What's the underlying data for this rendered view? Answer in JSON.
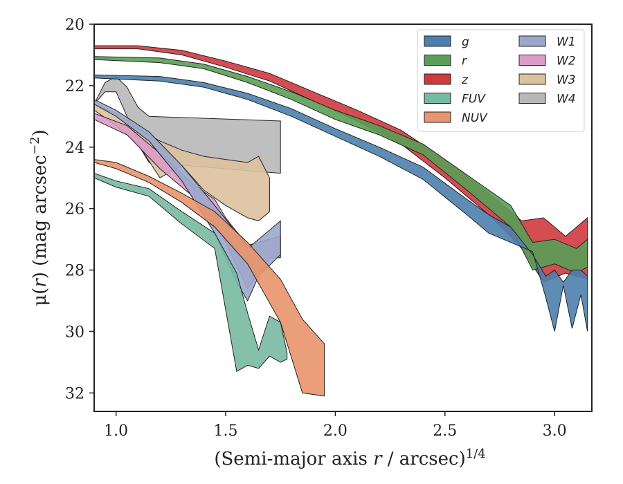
{
  "chart_data": {
    "type": "area",
    "title": "",
    "xlabel": {
      "prefix": "(Semi-major axis ",
      "var": "r",
      "suffix": " / arcsec)",
      "sup": "1/4"
    },
    "ylabel": {
      "prefix": "μ(",
      "var": "r",
      "suffix": ") (mag arcsec",
      "sup": "−2",
      "end": ")"
    },
    "xlim": [
      0.9,
      3.17
    ],
    "ylim": [
      32.6,
      20.0
    ],
    "y_inverted": true,
    "xticks": [
      1.0,
      1.5,
      2.0,
      2.5,
      3.0
    ],
    "xtick_labels": [
      "1.0",
      "1.5",
      "2.0",
      "2.5",
      "3.0"
    ],
    "yticks": [
      20,
      22,
      24,
      26,
      28,
      30,
      32
    ],
    "ytick_labels": [
      "20",
      "22",
      "24",
      "26",
      "28",
      "30",
      "32"
    ],
    "grid": false,
    "legend_position": "top-right",
    "legend_columns": 2,
    "series": [
      {
        "name": "g",
        "color": "#4c7fad",
        "x": [
          0.9,
          1.2,
          1.4,
          1.6,
          1.8,
          2.0,
          2.2,
          2.4,
          2.6,
          2.7,
          2.8,
          2.9,
          2.96,
          3.0,
          3.04,
          3.08,
          3.12,
          3.15
        ],
        "y_upper": [
          21.65,
          21.7,
          21.9,
          22.25,
          22.75,
          23.4,
          24.0,
          24.65,
          25.7,
          26.2,
          26.6,
          27.5,
          28.2,
          28.0,
          28.4,
          28.0,
          28.0,
          28.2
        ],
        "y_lower": [
          21.75,
          21.85,
          22.05,
          22.45,
          23.0,
          23.65,
          24.3,
          25.05,
          26.2,
          26.8,
          27.1,
          27.4,
          28.9,
          30.0,
          28.5,
          29.9,
          28.8,
          30.0
        ]
      },
      {
        "name": "r",
        "color": "#5a9e55",
        "x": [
          0.9,
          1.2,
          1.4,
          1.6,
          1.8,
          2.0,
          2.2,
          2.4,
          2.6,
          2.8,
          2.9,
          3.0,
          3.1,
          3.15
        ],
        "y_upper": [
          21.05,
          21.1,
          21.3,
          21.7,
          22.2,
          22.8,
          23.3,
          23.9,
          24.9,
          25.9,
          27.1,
          27.0,
          27.3,
          27.0
        ],
        "y_lower": [
          21.15,
          21.25,
          21.45,
          21.9,
          22.45,
          23.1,
          23.6,
          24.25,
          25.4,
          26.6,
          28.0,
          27.8,
          28.1,
          27.9
        ]
      },
      {
        "name": "z",
        "color": "#cf3a3f",
        "x": [
          0.9,
          1.1,
          1.3,
          1.5,
          1.7,
          1.9,
          2.1,
          2.3,
          2.5,
          2.7,
          2.8,
          2.85,
          2.95,
          3.05,
          3.15
        ],
        "y_upper": [
          20.7,
          20.7,
          20.85,
          21.2,
          21.6,
          22.2,
          22.8,
          23.45,
          24.4,
          25.5,
          26.1,
          26.4,
          26.3,
          26.9,
          26.3
        ],
        "y_lower": [
          20.8,
          20.8,
          21.0,
          21.4,
          21.85,
          22.5,
          23.15,
          23.9,
          25.0,
          26.2,
          26.9,
          27.3,
          28.4,
          28.1,
          28.3
        ]
      },
      {
        "name": "FUV",
        "color": "#78b9a2",
        "x": [
          0.9,
          1.0,
          1.15,
          1.3,
          1.45,
          1.55,
          1.6,
          1.65,
          1.7,
          1.75,
          1.78
        ],
        "y_upper": [
          24.85,
          25.1,
          25.35,
          26.1,
          26.8,
          28.1,
          29.4,
          30.6,
          29.5,
          29.7,
          30.7
        ],
        "y_lower": [
          25.0,
          25.3,
          25.6,
          26.5,
          27.3,
          31.3,
          31.1,
          31.2,
          30.8,
          31.0,
          30.9
        ]
      },
      {
        "name": "NUV",
        "color": "#e8946c",
        "x": [
          0.9,
          1.0,
          1.15,
          1.3,
          1.45,
          1.6,
          1.75,
          1.85,
          1.95
        ],
        "y_upper": [
          24.4,
          24.5,
          24.95,
          25.5,
          26.1,
          27.1,
          28.3,
          29.6,
          30.4
        ],
        "y_lower": [
          24.5,
          24.7,
          25.15,
          25.8,
          26.6,
          27.8,
          29.7,
          32.0,
          32.1
        ]
      },
      {
        "name": "W1",
        "color": "#9aa9cb",
        "x": [
          0.9,
          1.0,
          1.15,
          1.3,
          1.45,
          1.55,
          1.6,
          1.65,
          1.75
        ],
        "y_upper": [
          22.45,
          22.8,
          23.5,
          24.6,
          25.9,
          26.8,
          27.3,
          27.0,
          26.4
        ],
        "y_lower": [
          22.6,
          23.0,
          23.8,
          25.1,
          26.8,
          28.4,
          29.0,
          28.2,
          27.5
        ]
      },
      {
        "name": "W2",
        "color": "#dc9bc8",
        "x": [
          0.9,
          1.05,
          1.2,
          1.35,
          1.45,
          1.5,
          1.6,
          1.7,
          1.75
        ],
        "y_upper": [
          22.9,
          23.3,
          24.2,
          25.2,
          25.7,
          26.3,
          27.2,
          27.0,
          26.9
        ],
        "y_lower": [
          23.1,
          23.6,
          24.7,
          25.6,
          26.4,
          27.1,
          28.6,
          27.6,
          27.6
        ]
      },
      {
        "name": "W3",
        "color": "#dcc19f",
        "x": [
          0.9,
          1.0,
          1.1,
          1.2,
          1.3,
          1.4,
          1.5,
          1.6,
          1.65,
          1.7
        ],
        "y_upper": [
          22.6,
          22.9,
          23.4,
          23.8,
          24.1,
          24.3,
          24.4,
          24.5,
          24.3,
          25.0
        ],
        "y_lower": [
          22.8,
          23.3,
          23.9,
          25.0,
          24.6,
          25.4,
          25.9,
          26.3,
          26.4,
          26.1
        ]
      },
      {
        "name": "W4",
        "color": "#b8b8b8",
        "x": [
          0.9,
          0.95,
          1.0,
          1.05,
          1.1,
          1.15,
          1.75
        ],
        "y_upper": [
          22.6,
          21.9,
          21.7,
          22.05,
          22.7,
          23.0,
          23.15
        ],
        "y_lower": [
          22.6,
          22.2,
          22.2,
          23.0,
          23.9,
          24.5,
          24.85
        ]
      }
    ]
  }
}
